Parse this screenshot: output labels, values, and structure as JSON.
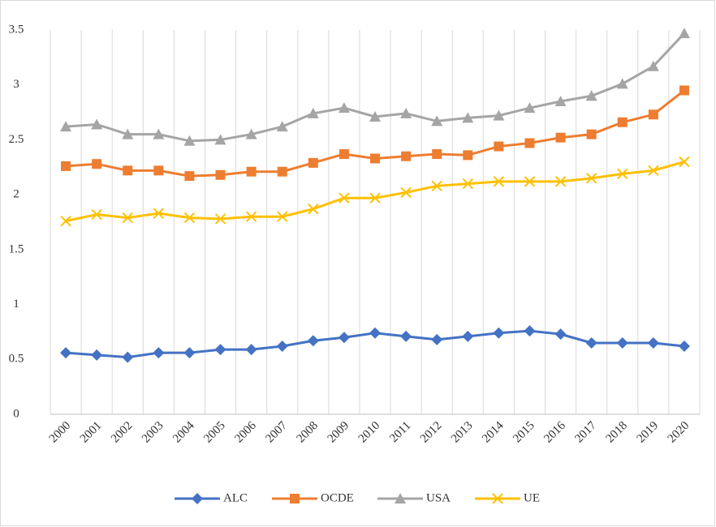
{
  "chart_data": {
    "type": "line",
    "categories": [
      "2000",
      "2001",
      "2002",
      "2003",
      "2004",
      "2005",
      "2006",
      "2007",
      "2008",
      "2009",
      "2010",
      "2011",
      "2012",
      "2013",
      "2014",
      "2015",
      "2016",
      "2017",
      "2018",
      "2019",
      "2020"
    ],
    "series": [
      {
        "name": "ALC",
        "color": "#4472c4",
        "marker": "diamond",
        "values": [
          0.56,
          0.54,
          0.52,
          0.56,
          0.56,
          0.59,
          0.59,
          0.62,
          0.67,
          0.7,
          0.74,
          0.71,
          0.68,
          0.71,
          0.74,
          0.76,
          0.73,
          0.65,
          0.65,
          0.65,
          0.62
        ]
      },
      {
        "name": "OCDE",
        "color": "#ed7d31",
        "marker": "square",
        "values": [
          2.26,
          2.28,
          2.22,
          2.22,
          2.17,
          2.18,
          2.21,
          2.21,
          2.29,
          2.37,
          2.33,
          2.35,
          2.37,
          2.36,
          2.44,
          2.47,
          2.52,
          2.55,
          2.66,
          2.73,
          2.95
        ]
      },
      {
        "name": "USA",
        "color": "#a5a5a5",
        "marker": "triangle",
        "values": [
          2.62,
          2.64,
          2.55,
          2.55,
          2.49,
          2.5,
          2.55,
          2.62,
          2.74,
          2.79,
          2.71,
          2.74,
          2.67,
          2.7,
          2.72,
          2.79,
          2.85,
          2.9,
          3.01,
          3.17,
          3.47
        ]
      },
      {
        "name": "UE",
        "color": "#ffc000",
        "marker": "x",
        "values": [
          1.76,
          1.82,
          1.79,
          1.83,
          1.79,
          1.78,
          1.8,
          1.8,
          1.87,
          1.97,
          1.97,
          2.02,
          2.08,
          2.1,
          2.12,
          2.12,
          2.12,
          2.15,
          2.19,
          2.22,
          2.3
        ]
      }
    ],
    "ylim": [
      0,
      3.5
    ],
    "yticks": [
      0,
      0.5,
      1,
      1.5,
      2,
      2.5,
      3,
      3.5
    ],
    "grid": "vertical",
    "legend": "bottom"
  }
}
